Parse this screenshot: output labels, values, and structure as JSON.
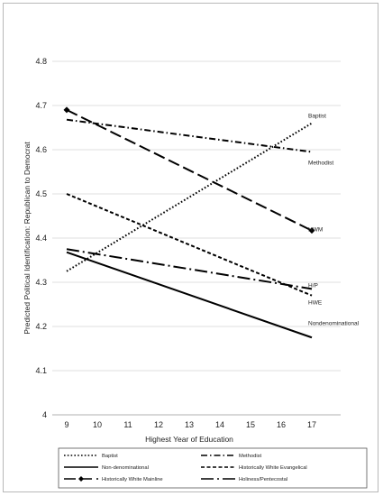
{
  "chart_data": {
    "type": "line",
    "ylabel": "Predicted Political Identification: Republican to Democrat",
    "xlabel": "Highest Year of Education",
    "x": [
      9,
      10,
      11,
      12,
      13,
      14,
      15,
      16,
      17
    ],
    "x_ticks": [
      "9",
      "10",
      "11",
      "12",
      "13",
      "14",
      "15",
      "16",
      "17"
    ],
    "ylim": [
      4,
      4.8
    ],
    "y_ticks": [
      "4",
      "4.1",
      "4.2",
      "4.3",
      "4.4",
      "4.5",
      "4.6",
      "4.7",
      "4.8"
    ],
    "grid": "horizontal",
    "legend_position": "bottom",
    "series": [
      {
        "name": "Baptist",
        "end_label": "Baptist",
        "start": 4.325,
        "end": 4.66,
        "style": "dotted",
        "marker": "none",
        "color": "#000000"
      },
      {
        "name": "Methodist",
        "end_label": "Methodist",
        "start": 4.668,
        "end": 4.595,
        "style": "dashdot",
        "marker": "none",
        "color": "#000000"
      },
      {
        "name": "Non-denominational",
        "end_label": "Nondenominational",
        "start": 4.368,
        "end": 4.175,
        "style": "solid",
        "marker": "none",
        "color": "#000000"
      },
      {
        "name": "Historically White Evangelical",
        "end_label": "HWE",
        "start": 4.5,
        "end": 4.27,
        "style": "dashed",
        "marker": "none",
        "color": "#000000"
      },
      {
        "name": "Historically White Mainline",
        "end_label": "HWM",
        "start": 4.69,
        "end": 4.417,
        "style": "longdash",
        "marker": "diamond",
        "color": "#000000"
      },
      {
        "name": "Holiness/Pentecostal",
        "end_label": "H/P",
        "start": 4.375,
        "end": 4.285,
        "style": "longdashdot",
        "marker": "none",
        "color": "#000000"
      }
    ],
    "legend_order": [
      0,
      1,
      2,
      3,
      4,
      5
    ]
  }
}
